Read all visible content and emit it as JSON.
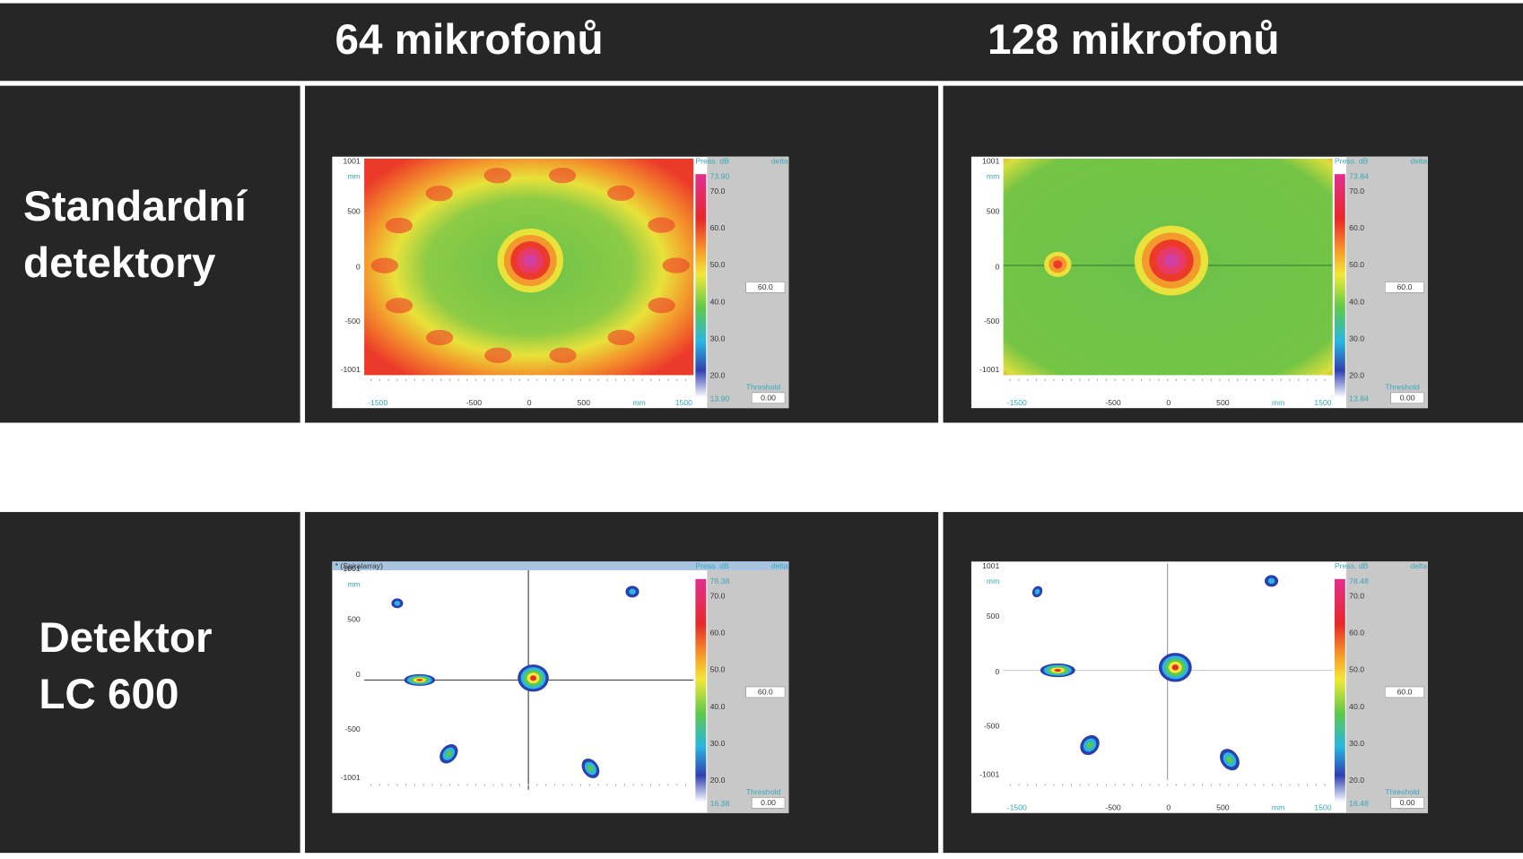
{
  "header": {
    "columns": [
      "64 mikrofonů",
      "128 mikrofonů"
    ]
  },
  "rows": [
    {
      "label": [
        "Standardní",
        "detektory"
      ]
    },
    {
      "label": [
        "Detektor",
        "LC 600"
      ]
    }
  ],
  "panels": [
    {
      "y_labels": [
        "1001",
        "mm",
        "500",
        "0",
        "-500",
        "-1001"
      ],
      "x_labels": [
        "-1500",
        "-500",
        "0",
        "500",
        "mm",
        "1500"
      ],
      "colorbar_title": "Press. dB",
      "delta": "delta",
      "colorbar_labels": [
        "73.90",
        "70.0",
        "60.0",
        "50.0",
        "40.0",
        "30.0",
        "20.0",
        "13.90"
      ],
      "level": "60.0",
      "threshold_label": "Threshold",
      "threshold": "0.00"
    },
    {
      "y_labels": [
        "1001",
        "mm",
        "500",
        "0",
        "-500",
        "-1001"
      ],
      "x_labels": [
        "-1500",
        "-500",
        "0",
        "500",
        "mm",
        "1500"
      ],
      "colorbar_title": "Press. dB",
      "delta": "delta",
      "colorbar_labels": [
        "73.84",
        "70.0",
        "60.0",
        "50.0",
        "40.0",
        "30.0",
        "20.0",
        "13.84"
      ],
      "level": "60.0",
      "threshold_label": "Threshold",
      "threshold": "0.00"
    },
    {
      "title": "* (Spiralarray)",
      "y_labels": [
        "1001",
        "mm",
        "500",
        "0",
        "-500",
        "-1001"
      ],
      "colorbar_title": "Press. dB",
      "delta": "delta",
      "colorbar_labels": [
        "78.38",
        "70.0",
        "60.0",
        "50.0",
        "40.0",
        "30.0",
        "20.0",
        "16.38"
      ],
      "level": "60.0",
      "threshold_label": "Threshold",
      "threshold": "0.00"
    },
    {
      "y_labels": [
        "1001",
        "mm",
        "500",
        "0",
        "-500",
        "-1001"
      ],
      "x_labels": [
        "-1500",
        "-500",
        "0",
        "500",
        "mm",
        "1500"
      ],
      "colorbar_title": "Press. dB",
      "delta": "delta",
      "colorbar_labels": [
        "78.48",
        "70.0",
        "60.0",
        "50.0",
        "40.0",
        "30.0",
        "20.0",
        "16.48"
      ],
      "level": "60.0",
      "threshold_label": "Threshold",
      "threshold": "0.00"
    }
  ]
}
